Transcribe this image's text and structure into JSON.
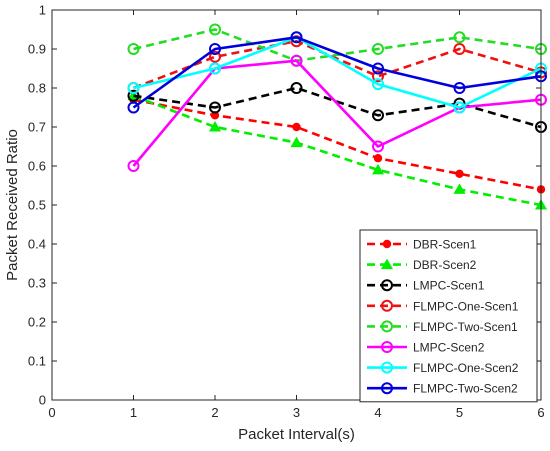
{
  "chart_data": {
    "type": "line",
    "title": "",
    "xlabel": "Packet Interval(s)",
    "ylabel": "Packet Received Ratio",
    "xlim": [
      0,
      6
    ],
    "ylim": [
      0,
      1
    ],
    "xticks": [
      0,
      1,
      2,
      3,
      4,
      5,
      6
    ],
    "yticks": [
      0,
      0.1,
      0.2,
      0.3,
      0.4,
      0.5,
      0.6,
      0.7,
      0.8,
      0.9,
      1
    ],
    "xtick_labels": [
      "0",
      "1",
      "2",
      "3",
      "4",
      "5",
      "6"
    ],
    "ytick_labels": [
      "0",
      "0.1",
      "0.2",
      "0.3",
      "0.4",
      "0.5",
      "0.6",
      "0.7",
      "0.8",
      "0.9",
      "1"
    ],
    "grid": false,
    "legend_position": "bottom-right",
    "x": [
      1,
      2,
      3,
      4,
      5,
      6
    ],
    "series": [
      {
        "name": "DBR-Scen1",
        "values": [
          0.77,
          0.73,
          0.7,
          0.62,
          0.58,
          0.54
        ],
        "color": "#ff0000",
        "line_style": "dashed",
        "marker": "dot"
      },
      {
        "name": "DBR-Scen2",
        "values": [
          0.78,
          0.7,
          0.66,
          0.59,
          0.54,
          0.5
        ],
        "color": "#00ee00",
        "line_style": "dashed",
        "marker": "triangle"
      },
      {
        "name": "LMPC-Scen1",
        "values": [
          0.78,
          0.75,
          0.8,
          0.73,
          0.76,
          0.7
        ],
        "color": "#000000",
        "line_style": "dashed",
        "marker": "circle"
      },
      {
        "name": "FLMPC-One-Scen1",
        "values": [
          0.8,
          0.88,
          0.92,
          0.83,
          0.9,
          0.84
        ],
        "color": "#ee1111",
        "line_style": "dashed",
        "marker": "circle"
      },
      {
        "name": "FLMPC-Two-Scen1",
        "values": [
          0.9,
          0.95,
          0.87,
          0.9,
          0.93,
          0.9
        ],
        "color": "#22dd22",
        "line_style": "dashed",
        "marker": "circle"
      },
      {
        "name": "LMPC-Scen2",
        "values": [
          0.6,
          0.85,
          0.87,
          0.65,
          0.75,
          0.77
        ],
        "color": "#ff00ff",
        "line_style": "solid",
        "marker": "circle"
      },
      {
        "name": "FLMPC-One-Scen2",
        "values": [
          0.8,
          0.85,
          0.93,
          0.81,
          0.75,
          0.85
        ],
        "color": "#00ffff",
        "line_style": "solid",
        "marker": "circle"
      },
      {
        "name": "FLMPC-Two-Scen2",
        "values": [
          0.75,
          0.9,
          0.93,
          0.85,
          0.8,
          0.83
        ],
        "color": "#0000dd",
        "line_style": "solid",
        "marker": "circle"
      }
    ]
  }
}
